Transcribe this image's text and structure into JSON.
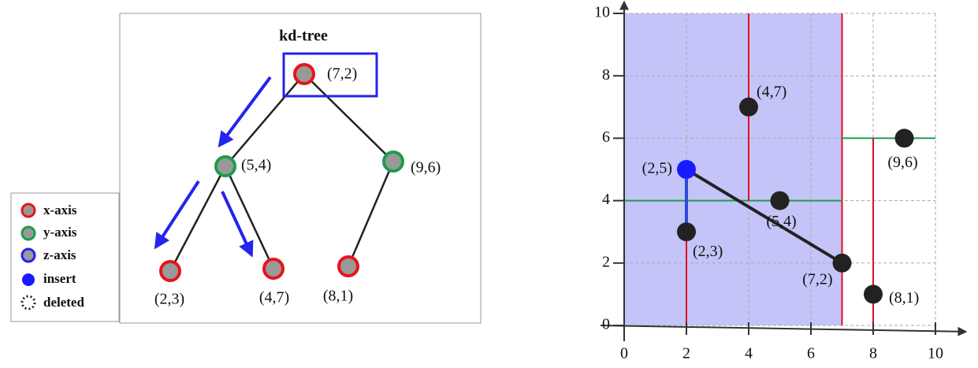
{
  "tree": {
    "title": "kd-tree",
    "nodes": [
      {
        "label": "(7,2)"
      },
      {
        "label": "(5,4)"
      },
      {
        "label": "(9,6)"
      },
      {
        "label": "(2,3)"
      },
      {
        "label": "(4,7)"
      },
      {
        "label": "(8,1)"
      }
    ]
  },
  "legend": [
    {
      "label": "x-axis"
    },
    {
      "label": "y-axis"
    },
    {
      "label": "z-axis"
    },
    {
      "label": "insert"
    },
    {
      "label": "deleted"
    }
  ],
  "plot": {
    "xlim": [
      0,
      10
    ],
    "ylim": [
      0,
      10
    ],
    "xticks": [
      0,
      2,
      4,
      6,
      8,
      10
    ],
    "yticks": [
      0,
      2,
      4,
      6,
      8,
      10
    ],
    "grid": true,
    "points": [
      {
        "label": "(2,3)",
        "x": 2,
        "y": 3,
        "color": "#222222"
      },
      {
        "label": "(4,7)",
        "x": 4,
        "y": 7,
        "color": "#222222"
      },
      {
        "label": "(5,4)",
        "x": 5,
        "y": 4,
        "color": "#222222"
      },
      {
        "label": "(7,2)",
        "x": 7,
        "y": 2,
        "color": "#222222"
      },
      {
        "label": "(8,1)",
        "x": 8,
        "y": 1,
        "color": "#222222"
      },
      {
        "label": "(9,6)",
        "x": 9,
        "y": 6,
        "color": "#222222"
      },
      {
        "label": "(2,5)",
        "x": 2,
        "y": 5,
        "color": "#1a1aff"
      }
    ]
  }
}
